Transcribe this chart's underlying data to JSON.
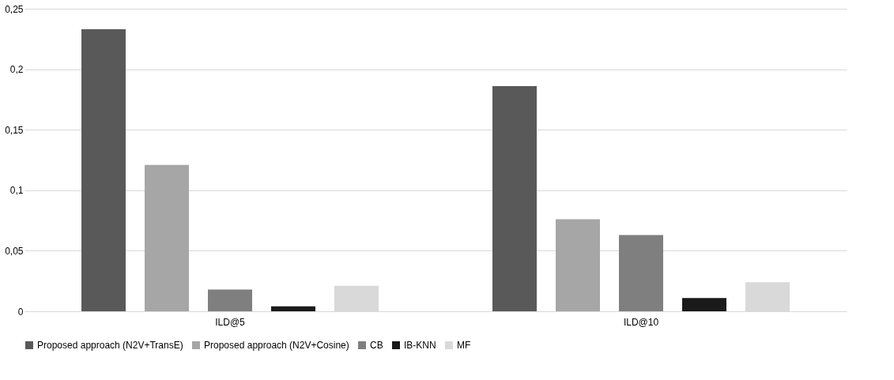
{
  "chart_data": {
    "type": "bar",
    "categories": [
      "ILD@5",
      "ILD@10"
    ],
    "series": [
      {
        "name": "Proposed approach (N2V+TransE)",
        "color": "#595959",
        "values": [
          0.233,
          0.186
        ]
      },
      {
        "name": "Proposed approach (N2V+Cosine)",
        "color": "#a6a6a6",
        "values": [
          0.121,
          0.076
        ]
      },
      {
        "name": "CB",
        "color": "#7f7f7f",
        "values": [
          0.018,
          0.063
        ]
      },
      {
        "name": "IB-KNN",
        "color": "#1a1a1a",
        "values": [
          0.004,
          0.011
        ]
      },
      {
        "name": "MF",
        "color": "#d9d9d9",
        "values": [
          0.021,
          0.024
        ]
      }
    ],
    "ylim": [
      0,
      0.25
    ],
    "yticks": [
      0,
      {
        "value": 0.05,
        "label": "0,05"
      },
      {
        "value": 0.1,
        "label": "0,1"
      },
      {
        "value": 0.15,
        "label": "0,15"
      },
      {
        "value": 0.2,
        "label": "0,2"
      },
      {
        "value": 0.25,
        "label": "0,25"
      }
    ],
    "grid": "y",
    "legend": "bottom"
  }
}
